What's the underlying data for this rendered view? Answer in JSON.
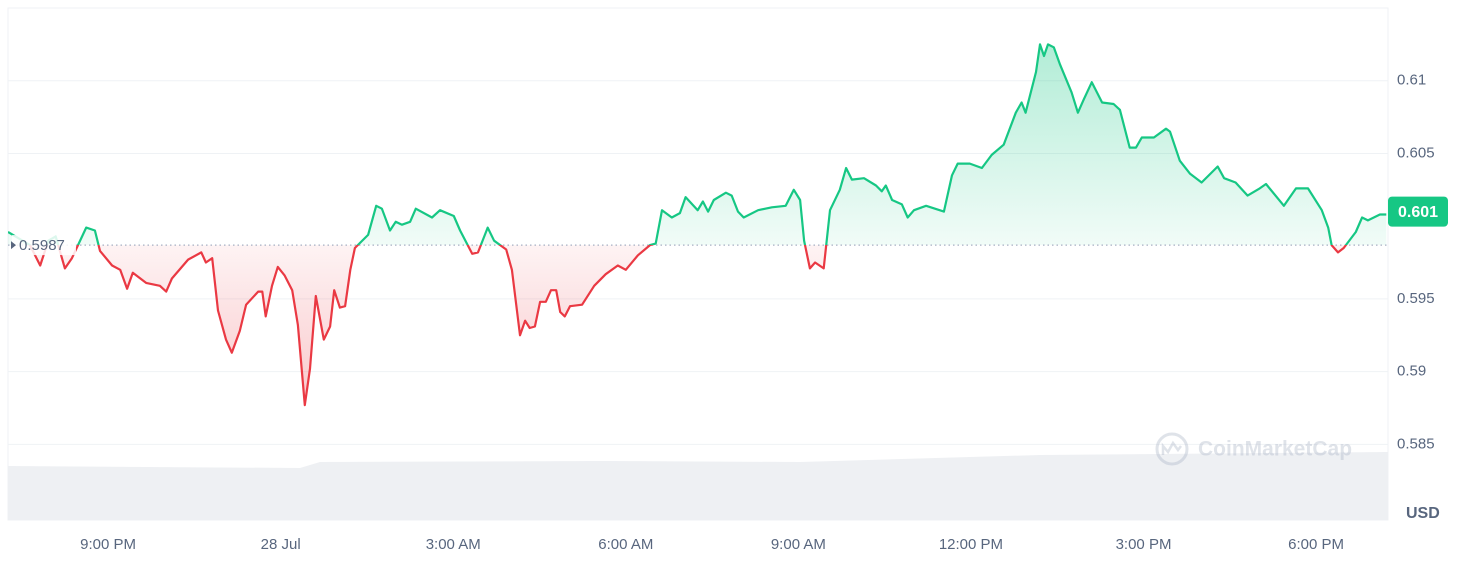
{
  "chart_data": {
    "type": "line",
    "x": [
      19.26,
      19.64,
      19.82,
      19.96,
      20.09,
      20.25,
      20.37,
      20.62,
      20.77,
      20.86,
      21.07,
      21.21,
      21.33,
      21.43,
      21.66,
      21.9,
      22.01,
      22.11,
      22.39,
      22.62,
      22.7,
      22.81,
      22.91,
      23.05,
      23.15,
      23.29,
      23.4,
      23.61,
      23.68,
      23.74,
      23.85,
      23.95,
      24.07,
      24.2,
      24.3,
      24.42,
      24.51,
      24.61,
      24.75,
      24.86,
      24.93,
      25.03,
      25.12,
      25.21,
      25.29,
      25.52,
      25.66,
      25.76,
      25.9,
      26.0,
      26.11,
      26.25,
      26.35,
      26.63,
      26.77,
      27.01,
      27.12,
      27.33,
      27.43,
      27.6,
      27.71,
      27.92,
      28.02,
      28.16,
      28.25,
      28.33,
      28.42,
      28.51,
      28.61,
      28.7,
      28.79,
      28.86,
      28.94,
      29.03,
      29.24,
      29.45,
      29.65,
      29.86,
      30.0,
      30.21,
      30.42,
      30.52,
      30.63,
      30.8,
      30.94,
      31.04,
      31.25,
      31.34,
      31.43,
      31.53,
      31.74,
      31.84,
      31.95,
      32.05,
      32.3,
      32.54,
      32.78,
      32.92,
      33.03,
      33.1,
      33.2,
      33.29,
      33.44,
      33.55,
      33.72,
      33.83,
      33.93,
      34.14,
      34.35,
      34.45,
      34.52,
      34.63,
      34.8,
      34.9,
      35.01,
      35.22,
      35.53,
      35.67,
      35.77,
      35.98,
      36.19,
      36.36,
      36.57,
      36.78,
      36.88,
      36.95,
      37.13,
      37.2,
      37.27,
      37.34,
      37.44,
      37.55,
      37.75,
      37.86,
      37.96,
      38.1,
      38.28,
      38.48,
      38.59,
      38.76,
      38.87,
      38.97,
      39.18,
      39.39,
      39.46,
      39.63,
      39.81,
      40.01,
      40.29,
      40.4,
      40.6,
      40.81,
      41.02,
      41.13,
      41.44,
      41.65,
      41.86,
      42.1,
      42.21,
      42.27,
      42.38,
      42.48,
      42.69,
      42.8,
      42.9,
      43.11,
      43.22
    ],
    "values": [
      0.5996,
      0.5987,
      0.5973,
      0.599,
      0.5993,
      0.5971,
      0.5978,
      0.5999,
      0.5997,
      0.5983,
      0.5973,
      0.597,
      0.5957,
      0.5968,
      0.5961,
      0.5959,
      0.5955,
      0.5964,
      0.5977,
      0.5982,
      0.5975,
      0.5978,
      0.5942,
      0.5922,
      0.5913,
      0.5928,
      0.5946,
      0.5955,
      0.5955,
      0.5938,
      0.5959,
      0.5972,
      0.5966,
      0.5956,
      0.5932,
      0.5877,
      0.5902,
      0.5952,
      0.5922,
      0.5931,
      0.5956,
      0.5944,
      0.5945,
      0.597,
      0.5985,
      0.5994,
      0.6014,
      0.6012,
      0.5997,
      0.6003,
      0.6001,
      0.6003,
      0.6012,
      0.6006,
      0.6011,
      0.6007,
      0.5997,
      0.5981,
      0.5982,
      0.5999,
      0.599,
      0.5984,
      0.597,
      0.5925,
      0.5935,
      0.593,
      0.5931,
      0.5948,
      0.5948,
      0.5956,
      0.5956,
      0.5941,
      0.5938,
      0.5945,
      0.5946,
      0.5959,
      0.5967,
      0.5973,
      0.597,
      0.598,
      0.5987,
      0.5988,
      0.6011,
      0.6006,
      0.6009,
      0.602,
      0.6011,
      0.6017,
      0.601,
      0.6018,
      0.6023,
      0.6021,
      0.601,
      0.6006,
      0.6011,
      0.6013,
      0.6014,
      0.6025,
      0.6018,
      0.599,
      0.5971,
      0.5975,
      0.5971,
      0.6011,
      0.6025,
      0.604,
      0.6032,
      0.6033,
      0.6028,
      0.6024,
      0.6028,
      0.6018,
      0.6015,
      0.6006,
      0.6011,
      0.6014,
      0.601,
      0.6035,
      0.6043,
      0.6043,
      0.604,
      0.6049,
      0.6056,
      0.6078,
      0.6085,
      0.6078,
      0.6106,
      0.6125,
      0.6117,
      0.6125,
      0.6123,
      0.6111,
      0.6092,
      0.6078,
      0.6087,
      0.6099,
      0.6085,
      0.6084,
      0.608,
      0.6054,
      0.6054,
      0.6061,
      0.6061,
      0.6067,
      0.6065,
      0.6045,
      0.6036,
      0.603,
      0.6041,
      0.6033,
      0.603,
      0.6021,
      0.6026,
      0.6029,
      0.6014,
      0.6026,
      0.6026,
      0.6011,
      0.5999,
      0.5987,
      0.5982,
      0.5985,
      0.5996,
      0.6006,
      0.6004,
      0.6008,
      0.6008
    ],
    "baseline": 0.5987,
    "baseline_label": "0.5987",
    "last_price_label": "0.601",
    "last_price": 0.601,
    "up_color": "#16c784",
    "down_color": "#ea3943",
    "xlim": [
      19.26,
      43.25
    ],
    "ylim": [
      0.5798,
      0.615
    ],
    "xticks": [
      {
        "value": 21,
        "label": "9:00 PM"
      },
      {
        "value": 24,
        "label": "28 Jul"
      },
      {
        "value": 27,
        "label": "3:00 AM"
      },
      {
        "value": 30,
        "label": "6:00 AM"
      },
      {
        "value": 33,
        "label": "9:00 AM"
      },
      {
        "value": 36,
        "label": "12:00 PM"
      },
      {
        "value": 39,
        "label": "3:00 PM"
      },
      {
        "value": 42,
        "label": "6:00 PM"
      }
    ],
    "yticks": [
      0.585,
      0.59,
      0.595,
      0.605,
      0.61
    ],
    "y_axis_label": "USD",
    "watermark": "CoinMarketCap",
    "grid": true
  }
}
